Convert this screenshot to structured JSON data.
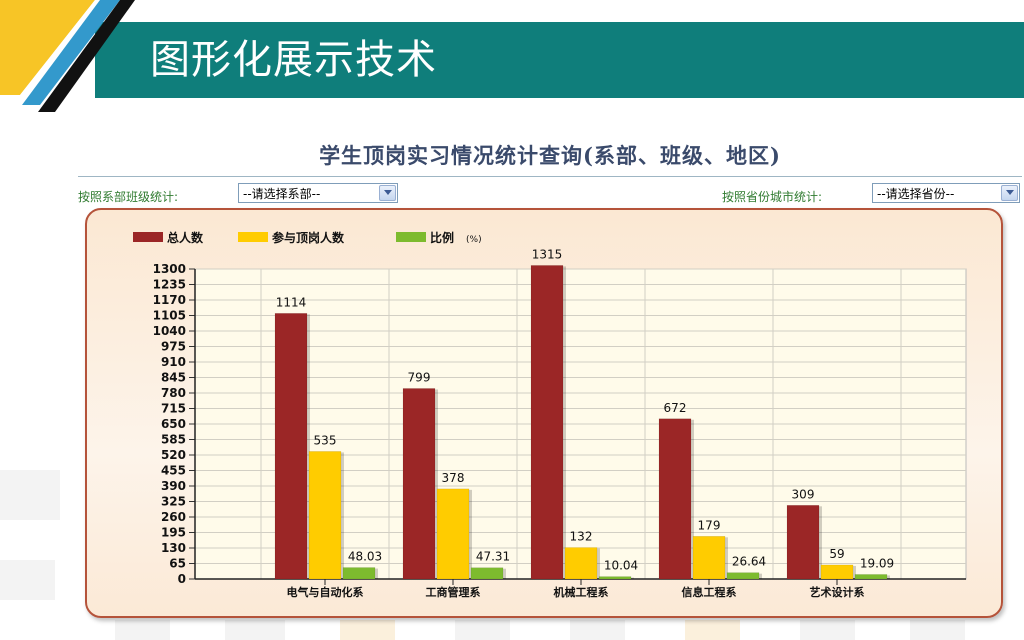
{
  "header": {
    "title": "图形化展示技术"
  },
  "query": {
    "title": "学生顶岗实习情况统计查询(系部、班级、地区)",
    "dept_filter_label": "按照系部班级统计:",
    "dept_select_value": "--请选择系部--",
    "province_filter_label": "按照省份城市统计:",
    "province_select_value": "--请选择省份--"
  },
  "colors": {
    "header": "#0f7e7b",
    "total": "#9b2626",
    "participants": "#ffcc00",
    "ratio": "#7dbb2e"
  },
  "chart_data": {
    "type": "bar",
    "categories": [
      "电气与自动化系",
      "工商管理系",
      "机械工程系",
      "信息工程系",
      "艺术设计系"
    ],
    "series": [
      {
        "name": "总人数",
        "values": [
          1114,
          799,
          1315,
          672,
          309
        ]
      },
      {
        "name": "参与顶岗人数",
        "values": [
          535,
          378,
          132,
          179,
          59
        ]
      },
      {
        "name": "比例",
        "values": [
          48.03,
          47.31,
          10.04,
          26.64,
          19.09
        ]
      }
    ],
    "ratio_unit": "(%)",
    "ylim": [
      0,
      1300
    ],
    "yticks": [
      0,
      65,
      130,
      195,
      260,
      325,
      390,
      455,
      520,
      585,
      650,
      715,
      780,
      845,
      910,
      975,
      1040,
      1105,
      1170,
      1235,
      1300
    ],
    "grid": true,
    "legend": "top-left"
  }
}
